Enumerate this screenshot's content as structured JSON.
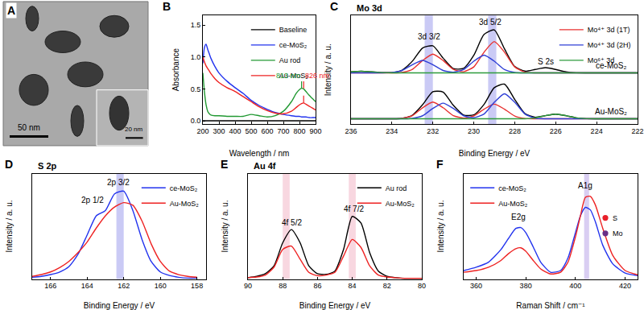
{
  "image_panel": {
    "panel": "A",
    "scale_bars": [
      "50 nm",
      "20 nm"
    ]
  },
  "chart_data": [
    {
      "panel": "B",
      "type": "line",
      "x_label": "Wavelength / nm",
      "y_label": "Absorbance",
      "xlim": [
        200,
        900
      ],
      "xticks": [
        200,
        300,
        400,
        500,
        600,
        700,
        800,
        900
      ],
      "ylim": [
        -0.05,
        1.65
      ],
      "yticks": [
        {
          "value": 0,
          "label": "0.0"
        },
        0.5,
        {
          "value": 1,
          "label": "1.0"
        },
        1.5
      ],
      "grid": false,
      "legend": "upper right",
      "x": [
        200,
        210,
        220,
        230,
        240,
        250,
        275,
        300,
        350,
        400,
        450,
        500,
        550,
        600,
        650,
        700,
        750,
        780,
        800,
        813,
        826,
        840,
        860,
        880,
        900
      ],
      "series": [
        {
          "name": "Baseline",
          "color": "#000000",
          "values": [
            0,
            0,
            0,
            0,
            0,
            0,
            0,
            0,
            0,
            0,
            0,
            0,
            0,
            0,
            0,
            0,
            0,
            0,
            0,
            0,
            0,
            0,
            0,
            0,
            0
          ]
        },
        {
          "name": "ce-MoS₂",
          "color": "#2233ee",
          "values": [
            0.9,
            1.15,
            1.2,
            1.12,
            1.05,
            0.98,
            0.85,
            0.75,
            0.62,
            0.52,
            0.43,
            0.32,
            0.24,
            0.18,
            0.13,
            0.1,
            0.08,
            0.07,
            0.07,
            0.06,
            0.06,
            0.06,
            0.05,
            0.05,
            0.05
          ]
        },
        {
          "name": "Au rod",
          "color": "#229933",
          "values": [
            0.75,
            0.45,
            0.25,
            0.15,
            0.11,
            0.09,
            0.08,
            0.08,
            0.07,
            0.07,
            0.07,
            0.1,
            0.08,
            0.06,
            0.08,
            0.15,
            0.3,
            0.43,
            0.49,
            0.51,
            0.5,
            0.46,
            0.4,
            0.35,
            0.3
          ]
        },
        {
          "name": "Au-MoS₂",
          "color": "#ee2222",
          "values": [
            1.0,
            0.92,
            0.86,
            0.82,
            0.78,
            0.74,
            0.66,
            0.6,
            0.52,
            0.46,
            0.38,
            0.3,
            0.22,
            0.16,
            0.12,
            0.11,
            0.15,
            0.21,
            0.25,
            0.27,
            0.28,
            0.26,
            0.23,
            0.2,
            0.17
          ]
        }
      ],
      "annotations": [
        {
          "text": "813 nm",
          "x": 813,
          "y": 0.62,
          "color": "#229933",
          "line_style": "dashed"
        },
        {
          "text": "826 nm",
          "x": 826,
          "y": 0.62,
          "color": "#ee2222",
          "line_style": "dashed"
        }
      ]
    },
    {
      "panel": "C",
      "type": "line",
      "title": "Mo 3d",
      "x_label": "Binding Energy / eV",
      "y_label": "Intensity / a. u.",
      "xlim": [
        236,
        222
      ],
      "xticks": [
        236,
        234,
        232,
        230,
        228,
        226,
        224,
        222
      ],
      "ylim": [
        0,
        10.4
      ],
      "yticks": [],
      "tick_labels": "x",
      "grid": false,
      "legend": "upper right",
      "x": [
        236,
        235.5,
        235,
        234.5,
        234,
        233.5,
        233,
        232.5,
        232,
        231.5,
        231,
        230.5,
        230,
        229.5,
        229,
        228.5,
        228,
        227.5,
        227,
        226.5,
        226,
        225.5,
        225,
        224.5,
        224,
        223.5,
        223,
        222.5,
        222
      ],
      "series": [
        {
          "color": "#000000",
          "values": [
            5.0,
            5.05,
            5.0,
            4.93,
            4.93,
            5.17,
            6.03,
            7.29,
            7.49,
            6.32,
            5.31,
            5.33,
            6.59,
            8.58,
            9.02,
            7.2,
            5.51,
            5.07,
            5.23,
            5.4,
            5.23,
            5.0,
            4.91,
            4.9,
            4.9,
            4.9,
            4.9,
            4.9,
            4.9
          ]
        },
        {
          "name": "Mo⁴⁺ 3d (1T)",
          "color": "#e8312f",
          "values": [
            4.9,
            4.9,
            4.9,
            4.9,
            4.9,
            4.94,
            5.24,
            6.09,
            6.7,
            6.09,
            5.24,
            5.01,
            5.47,
            6.88,
            7.9,
            6.88,
            5.47,
            4.97,
            4.9,
            4.9,
            4.9,
            4.9,
            4.9,
            4.9,
            4.9,
            4.9,
            4.9,
            4.9,
            4.9
          ]
        },
        {
          "name": "Mo⁴⁺ 3d (2H)",
          "color": "#2f3fd6",
          "values": [
            4.9,
            4.9,
            4.9,
            4.9,
            4.93,
            5.13,
            5.69,
            6.1,
            5.69,
            5.13,
            4.97,
            5.22,
            6.02,
            6.6,
            6.02,
            5.22,
            4.94,
            4.9,
            4.9,
            4.9,
            4.9,
            4.9,
            4.9,
            4.9,
            4.9,
            4.9,
            4.9,
            4.9,
            4.9
          ]
        },
        {
          "name": "Mo⁶⁺ 3d",
          "color": "#2e9b3c",
          "values": [
            5.0,
            5.05,
            5.0,
            4.93,
            4.9,
            4.9,
            4.9,
            4.9,
            4.9,
            4.9,
            4.9,
            4.9,
            4.9,
            4.9,
            4.9,
            4.9,
            4.9,
            4.9,
            4.9,
            4.9,
            4.9,
            4.9,
            4.9,
            4.9,
            4.9,
            4.9,
            4.9,
            4.9,
            4.9
          ]
        },
        {
          "color": "#000000",
          "values": [
            0.5,
            0.5,
            0.5,
            0.5,
            0.5,
            0.54,
            0.84,
            1.85,
            3.09,
            3.06,
            1.79,
            0.86,
            0.87,
            1.88,
            3.48,
            3.82,
            2.35,
            0.99,
            0.65,
            0.8,
            0.95,
            0.8,
            0.59,
            0.51,
            0.5,
            0.5,
            0.5,
            0.5,
            0.5
          ]
        },
        {
          "name": "Mo⁴⁺ 3d (1T)",
          "color": "#e8312f",
          "values": [
            0.5,
            0.5,
            0.5,
            0.5,
            0.5,
            0.54,
            0.8,
            1.56,
            2.1,
            1.56,
            0.8,
            0.57,
            0.77,
            1.42,
            1.9,
            1.42,
            0.77,
            0.53,
            0.5,
            0.5,
            0.5,
            0.5,
            0.5,
            0.5,
            0.5,
            0.5,
            0.5,
            0.5,
            0.5
          ]
        },
        {
          "name": "Mo⁴⁺ 3d (2H)",
          "color": "#2f3fd6",
          "values": [
            0.5,
            0.5,
            0.5,
            0.5,
            0.5,
            0.5,
            0.54,
            0.79,
            1.49,
            2.0,
            1.49,
            0.79,
            0.6,
            0.96,
            2.08,
            2.9,
            2.08,
            0.96,
            0.56,
            0.5,
            0.5,
            0.5,
            0.5,
            0.5,
            0.5,
            0.5,
            0.5,
            0.5,
            0.5
          ]
        },
        {
          "name": "Mo⁶⁺ 3d",
          "color": "#2e9b3c",
          "values": [
            0.5,
            0.5,
            0.5,
            0.5,
            0.5,
            0.5,
            0.5,
            0.5,
            0.5,
            0.5,
            0.5,
            0.5,
            0.5,
            0.5,
            0.5,
            0.5,
            0.5,
            0.5,
            0.59,
            0.8,
            0.95,
            0.8,
            0.59,
            0.51,
            0.5,
            0.5,
            0.5,
            0.5,
            0.5
          ]
        }
      ],
      "bands": [
        {
          "from": 232.0,
          "to": 232.4,
          "color": "#a7a7ee"
        },
        {
          "from": 228.9,
          "to": 229.3,
          "color": "#a7a7ee"
        }
      ],
      "annotations": [
        {
          "text": "3d 3/2",
          "x": 232.2,
          "y": 8.35
        },
        {
          "text": "3d 5/2",
          "x": 229.2,
          "y": 9.75
        },
        {
          "text": "S 2s",
          "x": 226.5,
          "y": 6.0
        },
        {
          "text": "ce-MoS₂",
          "x": 223.3,
          "y": 5.6
        },
        {
          "text": "Au-MoS₂",
          "x": 223.3,
          "y": 1.2
        }
      ]
    },
    {
      "panel": "D",
      "type": "line",
      "title": "S 2p",
      "x_label": "Binding Energy / eV",
      "y_label": "Intensity / a. u.",
      "xlim": [
        167,
        157.5
      ],
      "xticks": [
        166,
        164,
        162,
        160,
        158
      ],
      "ylim": [
        0,
        1.2
      ],
      "yticks": [],
      "tick_labels": "x",
      "grid": false,
      "legend": "upper right",
      "x": [
        167,
        166.5,
        166,
        165.5,
        165,
        164.5,
        164,
        163.5,
        163,
        162.5,
        162,
        161.5,
        161,
        160.5,
        160,
        159.5,
        159,
        158.5,
        158
      ],
      "series": [
        {
          "name": "ce-MoS₂",
          "color": "#2233ee",
          "values": [
            0.02,
            0.03,
            0.05,
            0.08,
            0.14,
            0.28,
            0.5,
            0.72,
            0.78,
            0.97,
            1.0,
            0.78,
            0.45,
            0.2,
            0.08,
            0.04,
            0.02,
            0.01,
            0.01
          ]
        },
        {
          "name": "Au-MoS₂",
          "color": "#ee2222",
          "values": [
            0.03,
            0.05,
            0.08,
            0.13,
            0.2,
            0.3,
            0.42,
            0.58,
            0.72,
            0.82,
            0.87,
            0.84,
            0.66,
            0.4,
            0.2,
            0.09,
            0.05,
            0.03,
            0.02
          ]
        }
      ],
      "bands": [
        {
          "from": 162.0,
          "to": 162.4,
          "color": "#a7a7ee"
        }
      ],
      "annotations": [
        {
          "text": "2p 1/2",
          "x": 163.7,
          "y": 0.9
        },
        {
          "text": "2p 3/2",
          "x": 162.3,
          "y": 1.1
        }
      ]
    },
    {
      "panel": "E",
      "type": "line",
      "title": "Au 4f",
      "x_label": "Binding Energy / eV",
      "y_label": "Intensity / a. u.",
      "xlim": [
        90,
        80
      ],
      "xticks": [
        90,
        88,
        86,
        84,
        82,
        80
      ],
      "ylim": [
        0,
        1.6
      ],
      "yticks": [],
      "tick_labels": "x",
      "grid": false,
      "legend": "upper right",
      "x": [
        90,
        89.5,
        89,
        88.5,
        88,
        87.5,
        87,
        86.5,
        86,
        85.5,
        85,
        84.5,
        84,
        83.5,
        83,
        82.5,
        82,
        81.5,
        81,
        80.5,
        80
      ],
      "series": [
        {
          "name": "Au rod",
          "color": "#000000",
          "values": [
            0.02,
            0.04,
            0.08,
            0.2,
            0.55,
            0.75,
            0.55,
            0.2,
            0.08,
            0.07,
            0.12,
            0.45,
            0.95,
            0.85,
            0.4,
            0.12,
            0.04,
            0.02,
            0.01,
            0.01,
            0.01
          ]
        },
        {
          "name": "Au-MoS₂",
          "color": "#ee2222",
          "values": [
            0.02,
            0.03,
            0.06,
            0.18,
            0.45,
            0.5,
            0.3,
            0.1,
            0.05,
            0.06,
            0.1,
            0.35,
            0.6,
            0.48,
            0.2,
            0.06,
            0.03,
            0.02,
            0.01,
            0.01,
            0.01
          ]
        }
      ],
      "bands": [
        {
          "from": 87.6,
          "to": 88.0,
          "color": "#f4bccb"
        },
        {
          "from": 83.8,
          "to": 84.2,
          "color": "#f4bccb"
        }
      ],
      "annotations": [
        {
          "text": "4f 5/2",
          "x": 87.5,
          "y": 0.86
        },
        {
          "text": "4f 7/2",
          "x": 83.9,
          "y": 1.06
        }
      ]
    },
    {
      "panel": "F",
      "type": "line",
      "x_label": "Raman Shift / cm⁻¹",
      "y_label": "Intensity / a. u.",
      "xlim": [
        355,
        425
      ],
      "xticks": [
        360,
        380,
        400,
        420
      ],
      "ylim": [
        0,
        1.25
      ],
      "yticks": [],
      "tick_labels": "x",
      "grid": false,
      "legend": "upper left",
      "x": [
        355,
        360,
        365,
        370,
        373,
        376,
        378,
        380,
        383,
        386,
        390,
        394,
        397,
        400,
        402,
        404,
        406,
        408,
        411,
        415,
        420,
        425
      ],
      "series": [
        {
          "name": "ce-MoS₂",
          "color": "#2233ee",
          "values": [
            0.1,
            0.14,
            0.2,
            0.35,
            0.48,
            0.6,
            0.61,
            0.55,
            0.38,
            0.2,
            0.08,
            0.1,
            0.25,
            0.55,
            0.75,
            0.85,
            0.82,
            0.68,
            0.4,
            0.18,
            0.07,
            0.04
          ]
        },
        {
          "name": "Au-MoS₂",
          "color": "#ee2222",
          "values": [
            0.08,
            0.1,
            0.14,
            0.22,
            0.3,
            0.36,
            0.37,
            0.33,
            0.22,
            0.12,
            0.06,
            0.08,
            0.2,
            0.5,
            0.75,
            0.97,
            0.98,
            0.88,
            0.6,
            0.28,
            0.1,
            0.05
          ]
        }
      ],
      "bands": [
        {
          "from": 403.5,
          "to": 405.5,
          "color": "#bfaeea"
        }
      ],
      "annotations": [
        {
          "text": "E2g",
          "x": 377,
          "y": 0.74
        },
        {
          "text": "A1g",
          "x": 404,
          "y": 1.11
        }
      ],
      "atom_key": [
        {
          "text": "S",
          "color": "#e8202a"
        },
        {
          "text": "Mo",
          "color": "#6a2f86"
        }
      ]
    }
  ]
}
